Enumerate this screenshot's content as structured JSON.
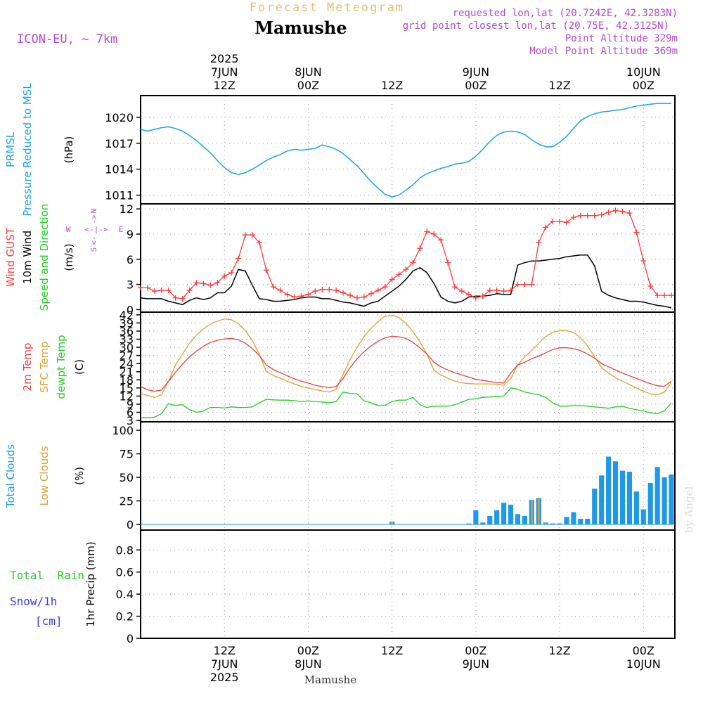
{
  "header": {
    "product": "Forecast Meteogram",
    "location": "Mamushe",
    "model": "ICON-EU, ~ 7km",
    "requested": "requested lon,lat (20.7242E, 42.3283N)",
    "gridpoint": "grid point closest lon,lat (20.75E, 42.3125N)",
    "point_alt": "Point Altitude 329m",
    "model_alt": "Model Point Altitude 369m",
    "credit": "by Angel",
    "footer_location": "Mamushe"
  },
  "colors": {
    "pressure": "#1aa3e8",
    "gust": "#ff3b3b",
    "wind": "#000000",
    "t2m": "#e84040",
    "sfc": "#e0a030",
    "dewpt": "#22cc22",
    "total_clouds": "#1e98e8",
    "low_clouds": "#d4a040",
    "rain": "#22cc22",
    "snow": "#3a3ae8",
    "purple": "#b04ad0"
  },
  "time_axis": {
    "top_ticks": [
      {
        "t": 12,
        "lines": [
          "2025",
          "7JUN",
          "12Z"
        ]
      },
      {
        "t": 24,
        "lines": [
          "8JUN",
          "00Z"
        ]
      },
      {
        "t": 36,
        "lines": [
          "12Z"
        ]
      },
      {
        "t": 48,
        "lines": [
          "9JUN",
          "00Z"
        ]
      },
      {
        "t": 60,
        "lines": [
          "12Z"
        ]
      },
      {
        "t": 72,
        "lines": [
          "10JUN",
          "00Z"
        ]
      }
    ],
    "bottom_ticks": [
      {
        "t": 12,
        "lines": [
          "12Z",
          "7JUN",
          "2025"
        ]
      },
      {
        "t": 24,
        "lines": [
          "00Z",
          "8JUN"
        ]
      },
      {
        "t": 36,
        "lines": [
          "12Z"
        ]
      },
      {
        "t": 48,
        "lines": [
          "00Z",
          "9JUN"
        ]
      },
      {
        "t": 60,
        "lines": [
          "12Z"
        ]
      },
      {
        "t": 72,
        "lines": [
          "00Z",
          "10JUN"
        ]
      }
    ]
  },
  "panels": [
    {
      "id": "pressure",
      "labels": [
        {
          "text": "PRMSL",
          "color": "pressure"
        },
        {
          "text": "Pressure Reduced to MSL",
          "color": "pressure"
        },
        {
          "text": "(hPa)",
          "color": "wind"
        }
      ]
    },
    {
      "id": "wind",
      "labels": [
        {
          "text": "Wind GUST",
          "color": "gust"
        },
        {
          "text": "10m Wind",
          "color": "wind"
        },
        {
          "text": "Speed and Direction",
          "color": "dewpt"
        },
        {
          "text": "(m/s)",
          "color": "wind"
        }
      ]
    },
    {
      "id": "temp",
      "labels": [
        {
          "text": "2m Temp",
          "color": "t2m"
        },
        {
          "text": "SFC Temp",
          "color": "sfc"
        },
        {
          "text": "dewpt Temp",
          "color": "dewpt"
        },
        {
          "text": "(C)",
          "color": "wind"
        }
      ]
    },
    {
      "id": "clouds",
      "labels": [
        {
          "text": "Total Clouds",
          "color": "total_clouds"
        },
        {
          "text": "Low Clouds",
          "color": "low_clouds"
        },
        {
          "text": "(%)",
          "color": "wind"
        }
      ]
    },
    {
      "id": "precip",
      "labels": [
        {
          "text": "1hr Precip (mm)",
          "color": "wind"
        }
      ],
      "legend": [
        {
          "text": "Total  Rain",
          "color": "rain"
        },
        {
          "text": "Snow/1h",
          "color": "snow"
        },
        {
          "text": "[cm]",
          "color": "snow"
        }
      ]
    }
  ],
  "compass": {
    "n": "N",
    "s": "S",
    "w": "W",
    "e": "E"
  },
  "chart_data": {
    "type": "line",
    "x_unit": "hours from 7JUN 00Z",
    "xlim": [
      0,
      76.5
    ],
    "pressure": {
      "name": "PRMSL",
      "ylim": [
        1010,
        1022.5
      ],
      "yticks": [
        1011,
        1014,
        1017,
        1020
      ],
      "x": [
        0,
        1,
        2,
        3,
        4,
        5,
        6,
        7,
        8,
        9,
        10,
        11,
        12,
        13,
        14,
        15,
        16,
        17,
        18,
        19,
        20,
        21,
        22,
        23,
        24,
        25,
        26,
        27,
        28,
        29,
        30,
        31,
        32,
        33,
        34,
        35,
        36,
        37,
        38,
        39,
        40,
        41,
        42,
        43,
        44,
        45,
        46,
        47,
        48,
        49,
        50,
        51,
        52,
        53,
        54,
        55,
        56,
        57,
        58,
        59,
        60,
        61,
        62,
        63,
        64,
        65,
        66,
        67,
        68,
        69,
        70,
        71,
        72,
        73,
        74,
        75,
        76
      ],
      "values": [
        1018.6,
        1018.4,
        1018.6,
        1018.8,
        1018.9,
        1018.7,
        1018.4,
        1017.9,
        1017.3,
        1016.6,
        1015.9,
        1015.0,
        1014.2,
        1013.6,
        1013.4,
        1013.6,
        1014.0,
        1014.5,
        1015.0,
        1015.4,
        1015.7,
        1016.1,
        1016.3,
        1016.2,
        1016.3,
        1016.4,
        1016.8,
        1016.6,
        1016.3,
        1015.8,
        1015.1,
        1014.4,
        1013.5,
        1012.6,
        1011.8,
        1011.1,
        1010.8,
        1011.0,
        1011.6,
        1012.2,
        1013.0,
        1013.5,
        1013.8,
        1014.1,
        1014.3,
        1014.6,
        1014.7,
        1014.9,
        1015.5,
        1016.3,
        1017.2,
        1017.9,
        1018.3,
        1018.4,
        1018.3,
        1018.0,
        1017.4,
        1016.9,
        1016.6,
        1016.6,
        1017.1,
        1017.8,
        1018.7,
        1019.6,
        1020.1,
        1020.4,
        1020.6,
        1020.7,
        1020.8,
        1020.9,
        1021.1,
        1021.3,
        1021.4,
        1021.5,
        1021.6,
        1021.6,
        1021.6
      ]
    },
    "wind": {
      "ylim": [
        -0.3,
        12.6
      ],
      "yticks": [
        0,
        3,
        6,
        9,
        12
      ],
      "gust": {
        "name": "Wind GUST",
        "x": [
          0,
          1,
          2,
          3,
          4,
          5,
          6,
          7,
          8,
          9,
          10,
          11,
          12,
          13,
          14,
          15,
          16,
          17,
          18,
          19,
          20,
          21,
          22,
          23,
          24,
          25,
          26,
          27,
          28,
          29,
          30,
          31,
          32,
          33,
          34,
          35,
          36,
          37,
          38,
          39,
          40,
          41,
          42,
          43,
          44,
          45,
          46,
          47,
          48,
          49,
          50,
          51,
          52,
          53,
          54,
          55,
          56,
          57,
          58,
          59,
          60,
          61,
          62,
          63,
          64,
          65,
          66,
          67,
          68,
          69,
          70,
          71,
          72,
          73,
          74,
          75,
          76
        ],
        "values": [
          2.6,
          2.6,
          2.2,
          2.3,
          2.3,
          1.4,
          1.3,
          2.3,
          3.2,
          3.1,
          2.9,
          3.2,
          4.0,
          4.4,
          6.1,
          8.9,
          8.9,
          8.0,
          4.7,
          2.7,
          2.3,
          1.8,
          1.5,
          1.6,
          1.8,
          2.2,
          2.4,
          2.4,
          2.3,
          2.0,
          1.7,
          1.4,
          1.5,
          1.9,
          2.3,
          2.7,
          3.6,
          4.2,
          4.8,
          5.6,
          7.3,
          9.3,
          9.0,
          8.3,
          5.6,
          2.7,
          2.2,
          1.8,
          1.4,
          1.6,
          2.3,
          2.3,
          2.2,
          2.3,
          3.0,
          3.0,
          3.0,
          8.0,
          9.8,
          10.5,
          10.5,
          10.4,
          11.0,
          11.2,
          11.2,
          11.2,
          11.3,
          11.6,
          11.8,
          11.7,
          11.5,
          9.2,
          5.8,
          2.8,
          1.7,
          1.7,
          1.7
        ]
      },
      "wind10m": {
        "name": "10m Wind",
        "x": [
          0,
          1,
          2,
          3,
          4,
          5,
          6,
          7,
          8,
          9,
          10,
          11,
          12,
          13,
          14,
          15,
          16,
          17,
          18,
          19,
          20,
          21,
          22,
          23,
          24,
          25,
          26,
          27,
          28,
          29,
          30,
          31,
          32,
          33,
          34,
          35,
          36,
          37,
          38,
          39,
          40,
          41,
          42,
          43,
          44,
          45,
          46,
          47,
          48,
          49,
          50,
          51,
          52,
          53,
          54,
          55,
          56,
          57,
          58,
          59,
          60,
          61,
          62,
          63,
          64,
          65,
          66,
          67,
          68,
          69,
          70,
          71,
          72,
          73,
          74,
          75,
          76
        ],
        "values": [
          1.4,
          1.3,
          1.3,
          1.3,
          1.0,
          0.8,
          0.6,
          1.1,
          1.4,
          1.2,
          1.4,
          2.0,
          2.0,
          2.8,
          4.8,
          4.6,
          2.9,
          1.3,
          1.2,
          1.0,
          1.0,
          1.1,
          1.2,
          1.4,
          1.5,
          1.5,
          1.3,
          1.3,
          1.1,
          0.9,
          0.8,
          0.6,
          0.4,
          0.8,
          1.0,
          1.6,
          2.2,
          2.8,
          3.6,
          4.6,
          5.0,
          4.4,
          3.1,
          1.5,
          1.0,
          0.8,
          1.0,
          1.5,
          1.6,
          1.6,
          1.7,
          1.9,
          1.8,
          1.8,
          5.3,
          5.6,
          5.8,
          5.8,
          5.9,
          6.0,
          6.1,
          6.3,
          6.4,
          6.5,
          6.5,
          5.2,
          2.2,
          1.7,
          1.4,
          1.2,
          1.0,
          1.0,
          0.9,
          0.7,
          0.5,
          0.4,
          0.2
        ]
      }
    },
    "temperature": {
      "ylim": [
        2.5,
        43
      ],
      "yticks": [
        3,
        6,
        9,
        12,
        15,
        18,
        21,
        24,
        27,
        30,
        33,
        36,
        39,
        42
      ],
      "x": [
        0,
        1,
        2,
        3,
        4,
        5,
        6,
        7,
        8,
        9,
        10,
        11,
        12,
        13,
        14,
        15,
        16,
        17,
        18,
        19,
        20,
        21,
        22,
        23,
        24,
        25,
        26,
        27,
        28,
        29,
        30,
        31,
        32,
        33,
        34,
        35,
        36,
        37,
        38,
        39,
        40,
        41,
        42,
        43,
        44,
        45,
        46,
        47,
        48,
        49,
        50,
        51,
        52,
        53,
        54,
        55,
        56,
        57,
        58,
        59,
        60,
        61,
        62,
        63,
        64,
        65,
        66,
        67,
        68,
        69,
        70,
        71,
        72,
        73,
        74,
        75,
        76
      ],
      "t2m": {
        "name": "2m Temp",
        "values": [
          15.5,
          14.3,
          13.8,
          14.2,
          17.5,
          20.8,
          23.8,
          26.5,
          28.6,
          30.4,
          31.8,
          32.6,
          33.1,
          33.3,
          32.8,
          31.5,
          29.5,
          27.0,
          23.5,
          21.8,
          20.6,
          19.5,
          18.4,
          17.5,
          16.8,
          16.0,
          15.5,
          15.1,
          15.5,
          18.5,
          22.5,
          25.8,
          28.4,
          30.5,
          32.3,
          33.5,
          34.1,
          33.9,
          33.3,
          31.8,
          29.8,
          27.5,
          24.5,
          22.8,
          21.6,
          20.6,
          19.8,
          19.0,
          18.2,
          17.8,
          17.4,
          17.0,
          16.8,
          20.5,
          23.5,
          24.5,
          25.8,
          26.8,
          28.0,
          29.2,
          29.8,
          29.9,
          29.5,
          28.8,
          27.5,
          26.0,
          24.0,
          22.8,
          21.6,
          20.5,
          19.5,
          18.5,
          17.5,
          16.6,
          15.8,
          15.6,
          17.5
        ]
      },
      "sfc": {
        "name": "SFC Temp",
        "values": [
          13.0,
          12.2,
          11.5,
          12.5,
          17.5,
          23.5,
          27.5,
          31.5,
          34.5,
          36.8,
          38.6,
          39.7,
          40.5,
          40.2,
          38.8,
          36.2,
          32.5,
          27.5,
          21.0,
          19.6,
          18.6,
          17.5,
          16.5,
          15.5,
          15.0,
          14.4,
          13.9,
          13.5,
          14.5,
          20.0,
          25.5,
          30.0,
          34.0,
          37.0,
          39.5,
          41.5,
          41.8,
          41.0,
          38.8,
          35.8,
          32.0,
          27.5,
          21.5,
          19.8,
          18.6,
          17.5,
          16.9,
          16.6,
          16.5,
          16.5,
          16.5,
          16.4,
          16.0,
          18.5,
          23.5,
          26.5,
          28.8,
          31.5,
          34.0,
          35.5,
          36.2,
          36.2,
          35.5,
          33.5,
          30.5,
          26.5,
          22.5,
          20.5,
          18.8,
          17.5,
          16.2,
          15.0,
          13.8,
          12.8,
          12.5,
          13.5,
          17.0
        ]
      },
      "dewpt": {
        "name": "dewpt Temp",
        "values": [
          4.0,
          4.0,
          4.2,
          5.5,
          9.2,
          8.5,
          8.8,
          7.0,
          6.0,
          6.5,
          7.8,
          7.8,
          7.6,
          8.0,
          7.8,
          7.8,
          8.0,
          9.5,
          10.8,
          10.6,
          10.5,
          10.5,
          10.3,
          10.0,
          10.2,
          10.0,
          9.8,
          9.5,
          10.0,
          13.5,
          13.0,
          12.8,
          10.2,
          9.5,
          8.5,
          8.5,
          10.0,
          10.5,
          10.5,
          11.5,
          8.8,
          7.8,
          8.3,
          8.3,
          8.3,
          8.8,
          9.8,
          10.8,
          11.0,
          11.5,
          11.7,
          11.8,
          12.0,
          15.0,
          14.5,
          13.5,
          13.0,
          12.5,
          11.5,
          9.5,
          8.3,
          8.3,
          8.5,
          8.5,
          8.3,
          8.0,
          7.8,
          7.5,
          8.0,
          8.2,
          7.5,
          7.0,
          6.5,
          5.8,
          5.5,
          6.5,
          9.5
        ]
      }
    },
    "clouds": {
      "ylim": [
        -6,
        109
      ],
      "yticks": [
        0,
        25,
        50,
        75,
        100
      ],
      "total": {
        "name": "Total Clouds",
        "x": [
          36,
          47,
          48,
          49,
          50,
          51,
          52,
          53,
          54,
          55,
          56,
          57,
          58,
          59,
          60,
          61,
          62,
          63,
          64,
          65,
          66,
          67,
          68,
          69,
          70,
          71,
          72,
          73,
          74,
          75,
          76
        ],
        "values": [
          3,
          1,
          15,
          2,
          9,
          15,
          23,
          21,
          11,
          9,
          26,
          28,
          2,
          1,
          1,
          8,
          13,
          6,
          6,
          38,
          52,
          72,
          67,
          57,
          56,
          35,
          16,
          44,
          61,
          50,
          53
        ]
      },
      "low": {
        "name": "Low Clouds",
        "x": [
          36,
          56,
          57,
          58
        ],
        "values": [
          3,
          26,
          27,
          2
        ]
      }
    },
    "precip": {
      "ylim": [
        0,
        0.98
      ],
      "yticks": [
        0,
        0.2,
        0.4,
        0.6,
        0.8
      ],
      "values": []
    }
  }
}
